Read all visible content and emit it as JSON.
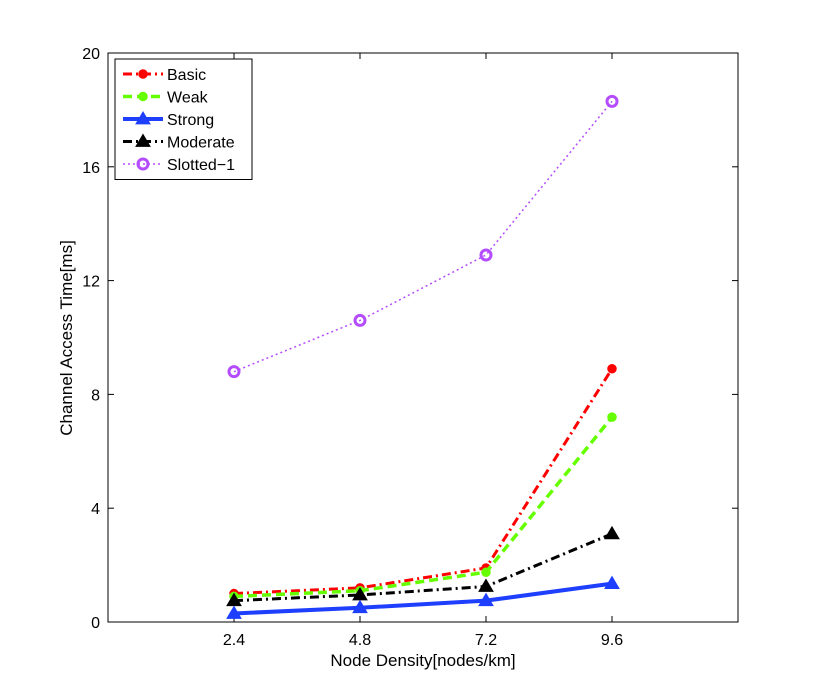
{
  "chart_data": {
    "type": "line",
    "xlabel": "Node Density[nodes/km]",
    "ylabel": "Channel Access Time[ms]",
    "title": "",
    "x": [
      2.4,
      4.8,
      7.2,
      9.6
    ],
    "x_tick_labels": [
      "2.4",
      "4.8",
      "7.2",
      "9.6"
    ],
    "xlim": [
      0,
      12
    ],
    "ylim": [
      0,
      20
    ],
    "y_ticks": [
      0,
      4,
      8,
      12,
      16,
      20
    ],
    "y_tick_labels": [
      "0",
      "4",
      "8",
      "12",
      "16",
      "20"
    ],
    "grid": false,
    "legend_position": "top-left",
    "series": [
      {
        "name": "Basic",
        "values": [
          1.0,
          1.2,
          1.9,
          8.9
        ],
        "color": "#ff0000",
        "line_style": "dash-dot",
        "marker": "star"
      },
      {
        "name": "Weak",
        "values": [
          0.9,
          1.1,
          1.75,
          7.2
        ],
        "color": "#66ff00",
        "line_style": "dashed",
        "marker": "star"
      },
      {
        "name": "Strong",
        "values": [
          0.3,
          0.5,
          0.75,
          1.35
        ],
        "color": "#1f3fff",
        "line_style": "solid",
        "marker": "triangle"
      },
      {
        "name": "Moderate",
        "values": [
          0.75,
          0.95,
          1.25,
          3.1
        ],
        "color": "#000000",
        "line_style": "dash-dot",
        "marker": "triangle"
      },
      {
        "name": "Slotted−1",
        "values": [
          8.8,
          10.6,
          12.9,
          18.3
        ],
        "color": "#b44cff",
        "line_style": "dotted",
        "marker": "circle"
      }
    ]
  }
}
